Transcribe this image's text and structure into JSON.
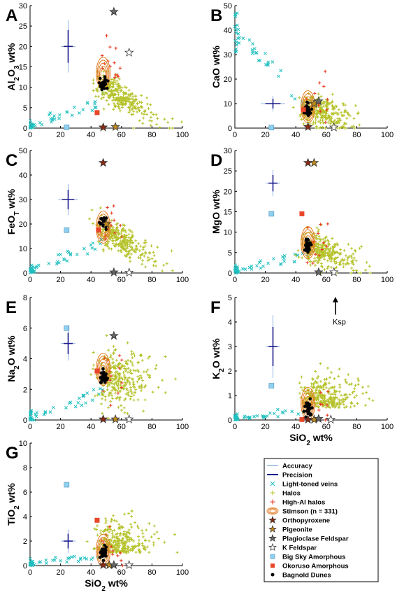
{
  "colors": {
    "accuracy": "#8fb3e0",
    "precision": "#1a1a8c",
    "veins": "#1fbfbf",
    "halos": "#b5c22a",
    "high_al": "#e8341c",
    "stimson": "#e07a1f",
    "orthopyroxene": "#8b2a14",
    "pigeonite": "#c08a1c",
    "plagioclase": "#666666",
    "kfeldspar": "#ffffff",
    "bigsky": "#8fd0f0",
    "okoruso": "#e8462a",
    "bagnold": "#000000"
  },
  "legend": {
    "items": [
      {
        "label": "Accuracy",
        "symbol": "line-light"
      },
      {
        "label": "Precision",
        "symbol": "line-dark"
      },
      {
        "label": "Light-toned veins",
        "symbol": "x-cyan"
      },
      {
        "label": "Halos",
        "symbol": "plus-olive"
      },
      {
        "label": "High-Al halos",
        "symbol": "plus-red"
      },
      {
        "label": "Stimson (n = 331)",
        "symbol": "contour"
      },
      {
        "label": "Orthopyroxene",
        "symbol": "star-brown"
      },
      {
        "label": "Pigeonite",
        "symbol": "star-gold"
      },
      {
        "label": "Plagioclase Feldspar",
        "symbol": "star-gray"
      },
      {
        "label": "K Feldspar",
        "symbol": "star-white"
      },
      {
        "label": "Big Sky Amorphous",
        "symbol": "square-blue"
      },
      {
        "label": "Okoruso Amorphous",
        "symbol": "square-red"
      },
      {
        "label": "Bagnold Dunes",
        "symbol": "dot-black"
      }
    ]
  },
  "annotation": {
    "ksp": "Ksp"
  },
  "chart_data": [
    {
      "id": "A",
      "type": "scatter",
      "letter": "A",
      "ylabel": "Al2O3 wt%",
      "ylabel_main": "Al",
      "ylabel_sub1": "2",
      "ylabel_mid": "O",
      "ylabel_sub2": "3",
      "ylabel_tail": " wt%",
      "xlabel": "",
      "xlim": [
        0,
        100
      ],
      "ylim": [
        0,
        30
      ],
      "xticks": [
        "0",
        "20",
        "40",
        "60",
        "80",
        "100"
      ],
      "yticks": [
        "0",
        "5",
        "10",
        "15",
        "20",
        "25",
        "30"
      ],
      "error_bar": {
        "x": 25,
        "y": 20,
        "dx": 3,
        "dy": 4
      },
      "minerals": {
        "orthopyroxene": {
          "x": 48,
          "y": 0.2
        },
        "pigeonite": {
          "x": 56,
          "y": 0.3
        },
        "plagioclase": {
          "x": 55,
          "y": 28.5
        },
        "kfeldspar": {
          "x": 65,
          "y": 18.5
        }
      },
      "bigsky": {
        "x": 24,
        "y": 0.2
      },
      "okoruso": {
        "x": 44,
        "y": 3.8
      },
      "bagnold_center": {
        "x": 48,
        "y": 11
      },
      "stimson_center": {
        "x": 48,
        "y": 13
      }
    },
    {
      "id": "B",
      "type": "scatter",
      "letter": "B",
      "ylabel": "CaO wt%",
      "ylabel_main": "CaO wt%",
      "xlabel": "",
      "xlim": [
        0,
        100
      ],
      "ylim": [
        0,
        50
      ],
      "xticks": [
        "0",
        "20",
        "40",
        "60",
        "80",
        "100"
      ],
      "yticks": [
        "0",
        "10",
        "20",
        "30",
        "40",
        "50"
      ],
      "error_bar": {
        "x": 25,
        "y": 10,
        "dx": 5,
        "dy": 2
      },
      "minerals": {
        "orthopyroxene": {
          "x": 48,
          "y": 0.5
        },
        "pigeonite": {
          "x": 52,
          "y": 10
        },
        "plagioclase": {
          "x": 55,
          "y": 11
        },
        "kfeldspar": {
          "x": 65,
          "y": 0.3
        }
      },
      "bigsky": {
        "x": 24,
        "y": 0.2
      },
      "okoruso": {
        "x": 45,
        "y": 7.5
      },
      "bagnold_center": {
        "x": 48,
        "y": 7.5
      },
      "stimson_center": {
        "x": 48,
        "y": 8
      }
    },
    {
      "id": "C",
      "type": "scatter",
      "letter": "C",
      "ylabel": "FeOT wt%",
      "ylabel_main": "FeO",
      "ylabel_sub1": "T",
      "ylabel_tail": " wt%",
      "xlabel": "",
      "xlim": [
        0,
        100
      ],
      "ylim": [
        0,
        50
      ],
      "xticks": [
        "0",
        "20",
        "40",
        "60",
        "80",
        "100"
      ],
      "yticks": [
        "0",
        "10",
        "20",
        "30",
        "40",
        "50"
      ],
      "error_bar": {
        "x": 25,
        "y": 30,
        "dx": 4,
        "dy": 4
      },
      "minerals": {
        "orthopyroxene": {
          "x": 48,
          "y": 45
        },
        "pigeonite": {
          "x": 50,
          "y": 20
        },
        "plagioclase": {
          "x": 55,
          "y": 0.3
        },
        "kfeldspar": {
          "x": 65,
          "y": 0.2
        }
      },
      "bigsky": {
        "x": 24,
        "y": 17.5
      },
      "okoruso": {
        "x": 45,
        "y": 17.5
      },
      "bagnold_center": {
        "x": 48,
        "y": 20
      },
      "stimson_center": {
        "x": 48,
        "y": 18
      }
    },
    {
      "id": "D",
      "type": "scatter",
      "letter": "D",
      "ylabel": "MgO wt%",
      "ylabel_main": "MgO wt%",
      "xlabel": "",
      "xlim": [
        0,
        100
      ],
      "ylim": [
        0,
        30
      ],
      "xticks": [
        "0",
        "20",
        "40",
        "60",
        "80",
        "100"
      ],
      "yticks": [
        "0",
        "5",
        "10",
        "15",
        "20",
        "25",
        "30"
      ],
      "error_bar": {
        "x": 25,
        "y": 22,
        "dx": 3,
        "dy": 2
      },
      "minerals": {
        "orthopyroxene": {
          "x": 48,
          "y": 27
        },
        "pigeonite": {
          "x": 52,
          "y": 27
        },
        "plagioclase": {
          "x": 55,
          "y": 0.2
        },
        "kfeldspar": {
          "x": 65,
          "y": 0.2
        }
      },
      "bigsky": {
        "x": 24,
        "y": 14.5
      },
      "okoruso": {
        "x": 44,
        "y": 14.5
      },
      "bagnold_center": {
        "x": 48,
        "y": 7
      },
      "stimson_center": {
        "x": 48,
        "y": 7
      }
    },
    {
      "id": "E",
      "type": "scatter",
      "letter": "E",
      "ylabel": "Na2O wt%",
      "ylabel_main": "Na",
      "ylabel_sub1": "2",
      "ylabel_tail": "O wt%",
      "xlabel": "",
      "xlim": [
        0,
        100
      ],
      "ylim": [
        0,
        8
      ],
      "xticks": [
        "0",
        "20",
        "40",
        "60",
        "80",
        "100"
      ],
      "yticks": [
        "0",
        "2",
        "4",
        "6",
        "8"
      ],
      "error_bar": {
        "x": 25,
        "y": 5,
        "dx": 3,
        "dy": 0.7
      },
      "minerals": {
        "orthopyroxene": {
          "x": 48,
          "y": 0.05
        },
        "pigeonite": {
          "x": 56,
          "y": 0.05
        },
        "plagioclase": {
          "x": 55,
          "y": 5.5
        },
        "kfeldspar": {
          "x": 65,
          "y": 0.05
        }
      },
      "bigsky": {
        "x": 24,
        "y": 6
      },
      "okoruso": {
        "x": 44,
        "y": 3.2
      },
      "bagnold_center": {
        "x": 48,
        "y": 2.8
      },
      "stimson_center": {
        "x": 48,
        "y": 3.2
      }
    },
    {
      "id": "F",
      "type": "scatter",
      "letter": "F",
      "ylabel": "K2O wt%",
      "ylabel_main": "K",
      "ylabel_sub1": "2",
      "ylabel_tail": "O wt%",
      "xlabel": "SiO2 wt%",
      "xlim": [
        0,
        100
      ],
      "ylim": [
        0,
        5
      ],
      "xticks": [
        "0",
        "20",
        "40",
        "60",
        "80",
        "100"
      ],
      "yticks": [
        "0",
        "1",
        "2",
        "3",
        "4",
        "5"
      ],
      "error_bar": {
        "x": 25,
        "y": 3,
        "dx": 3,
        "dy": 0.8
      },
      "minerals": {
        "orthopyroxene": {
          "x": 48,
          "y": 0.02
        },
        "pigeonite": {
          "x": 52,
          "y": 0.02
        },
        "plagioclase": {
          "x": 55,
          "y": 0.05
        },
        "kfeldspar": {
          "x": 63,
          "y": 0.02
        }
      },
      "bigsky": {
        "x": 24,
        "y": 1.4
      },
      "okoruso": {
        "x": 44,
        "y": 0.02
      },
      "bagnold_center": {
        "x": 48,
        "y": 0.5
      },
      "stimson_center": {
        "x": 48,
        "y": 0.6
      }
    },
    {
      "id": "G",
      "type": "scatter",
      "letter": "G",
      "ylabel": "TiO2 wt%",
      "ylabel_main": "TiO",
      "ylabel_sub1": "2",
      "ylabel_tail": " wt%",
      "xlabel": "SiO2 wt%",
      "xlim": [
        0,
        100
      ],
      "ylim": [
        0,
        10
      ],
      "xticks": [
        "0",
        "20",
        "40",
        "60",
        "80",
        "100"
      ],
      "yticks": [
        "0",
        "2",
        "4",
        "6",
        "8",
        "10"
      ],
      "error_bar": {
        "x": 25,
        "y": 2,
        "dx": 3,
        "dy": 0.6
      },
      "minerals": {
        "orthopyroxene": {
          "x": 48,
          "y": 0.05
        },
        "pigeonite": {
          "x": 52,
          "y": 0.05
        },
        "plagioclase": {
          "x": 55,
          "y": 0.05
        },
        "kfeldspar": {
          "x": 65,
          "y": 0.05
        }
      },
      "bigsky": {
        "x": 24,
        "y": 6.6
      },
      "okoruso": {
        "x": 44,
        "y": 3.7
      },
      "bagnold_center": {
        "x": 48,
        "y": 1.0
      },
      "stimson_center": {
        "x": 48,
        "y": 1.1
      }
    }
  ]
}
